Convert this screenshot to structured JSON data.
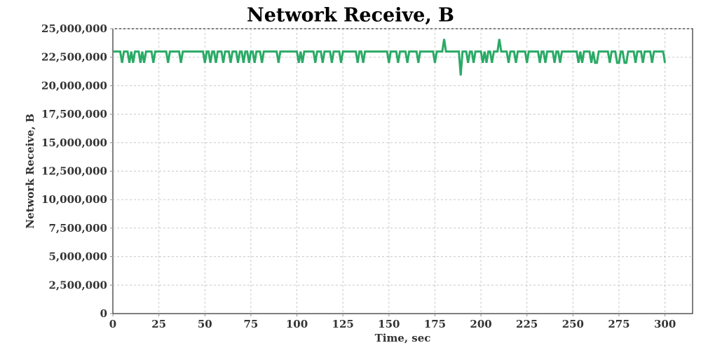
{
  "chart_data": {
    "type": "line",
    "title": "Network Receive, B",
    "xlabel": "Time, sec",
    "ylabel": "Network Receive, B",
    "xlim": [
      0,
      315
    ],
    "ylim": [
      0,
      25000000
    ],
    "x_ticks": [
      0,
      25,
      50,
      75,
      100,
      125,
      150,
      175,
      200,
      225,
      250,
      275,
      300
    ],
    "x_tick_labels": [
      "0",
      "25",
      "50",
      "75",
      "100",
      "125",
      "150",
      "175",
      "200",
      "225",
      "250",
      "275",
      "300"
    ],
    "y_ticks": [
      0,
      2500000,
      5000000,
      7500000,
      10000000,
      12500000,
      15000000,
      17500000,
      20000000,
      22500000,
      25000000
    ],
    "y_tick_labels": [
      "0",
      "2,500,000",
      "5,000,000",
      "7,500,000",
      "10,000,000",
      "12,500,000",
      "15,000,000",
      "17,500,000",
      "20,000,000",
      "22,500,000",
      "25,000,000"
    ],
    "grid": true,
    "legend": "none",
    "series": [
      {
        "color": "#2aaa66",
        "x_start": 0,
        "x_end": 300,
        "x_step": 1,
        "baseline": 23000000,
        "dip_value": 22000000,
        "dips_at": [
          5,
          9,
          11,
          15,
          17,
          22,
          30,
          37,
          50,
          53,
          56,
          60,
          64,
          68,
          71,
          74,
          77,
          81,
          90,
          101,
          103,
          110,
          114,
          119,
          124,
          133,
          136,
          150,
          155,
          160,
          166,
          175,
          193,
          196,
          203,
          206,
          215,
          219,
          225,
          232,
          235,
          240,
          243,
          253,
          255,
          260,
          263,
          270,
          274,
          278,
          300
        ],
        "special_points": [
          {
            "x": 180,
            "y": 24100000
          },
          {
            "x": 189,
            "y": 20900000
          },
          {
            "x": 201,
            "y": 22000000
          },
          {
            "x": 210,
            "y": 24100000
          },
          {
            "x": 262,
            "y": 22000000
          },
          {
            "x": 275,
            "y": 22000000
          },
          {
            "x": 279,
            "y": 22000000
          },
          {
            "x": 284,
            "y": 22000000
          },
          {
            "x": 288,
            "y": 22000000
          },
          {
            "x": 293,
            "y": 22000000
          }
        ]
      }
    ]
  }
}
